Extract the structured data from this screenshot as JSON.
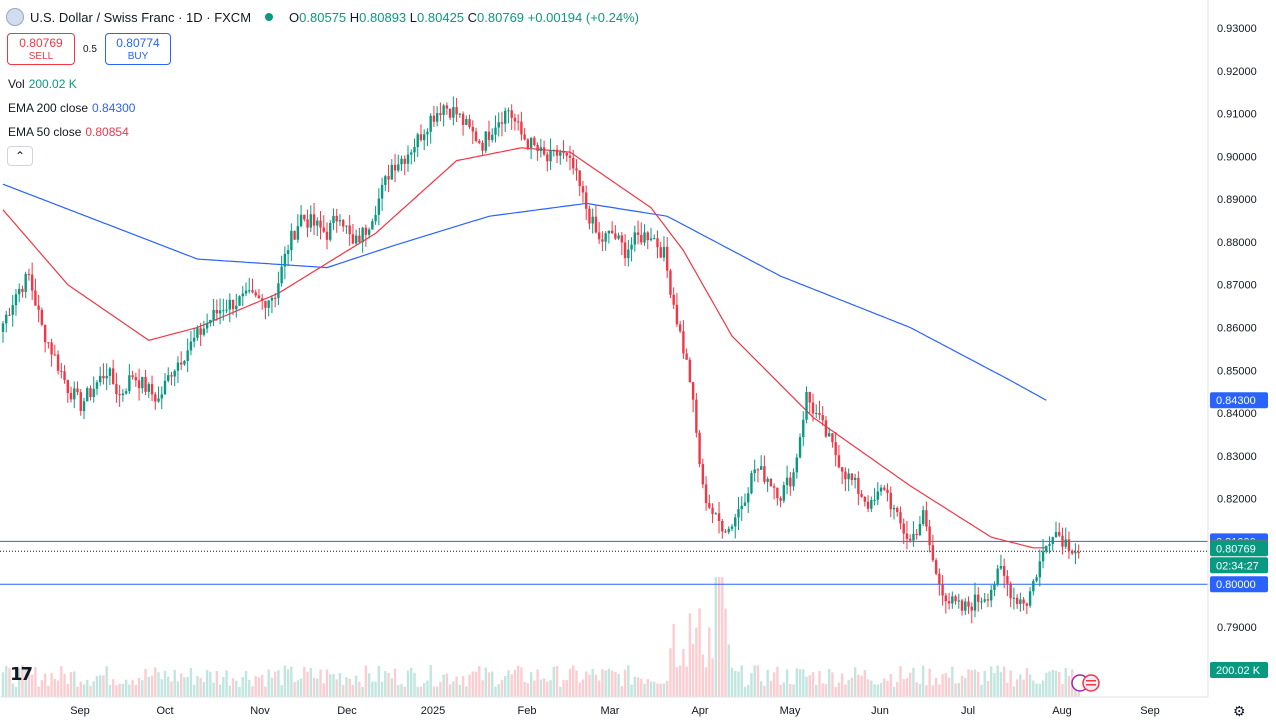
{
  "header": {
    "symbol_title": "U.S. Dollar / Swiss Franc · 1D · FXCM",
    "open_label": "O",
    "open": "0.80575",
    "high_label": "H",
    "high": "0.80893",
    "low_label": "L",
    "low": "0.80425",
    "close_label": "C",
    "close": "0.80769",
    "change": "+0.00194 (+0.24%)"
  },
  "trade": {
    "sell_price": "0.80769",
    "sell_label": "SELL",
    "spread": "0.5",
    "buy_price": "0.80774",
    "buy_label": "BUY"
  },
  "indicators": {
    "vol_label": "Vol",
    "vol_value": "200.02 K",
    "ema200_label": "EMA 200 close",
    "ema200_value": "0.84300",
    "ema50_label": "EMA 50 close",
    "ema50_value": "0.80854"
  },
  "price_scale": {
    "ticks": [
      "0.93000",
      "0.92000",
      "0.91000",
      "0.90000",
      "0.89000",
      "0.88000",
      "0.87000",
      "0.86000",
      "0.85000",
      "0.84000",
      "0.83000",
      "0.82000",
      "0.81000",
      "0.80000",
      "0.79000"
    ],
    "labels": [
      {
        "text": "0.84300",
        "color": "#2962ff"
      },
      {
        "text": "0.81000",
        "color": "#2962ff"
      },
      {
        "text": "0.80854",
        "color": "#f23645"
      },
      {
        "text": "0.80769",
        "color": "#089981"
      },
      {
        "text": "02:34:27",
        "color": "#089981"
      },
      {
        "text": "0.80000",
        "color": "#2962ff"
      },
      {
        "text": "200.02 K",
        "color": "#089981"
      }
    ]
  },
  "time_axis": [
    "Sep",
    "Oct",
    "Nov",
    "Dec",
    "2025",
    "Feb",
    "Mar",
    "Apr",
    "May",
    "Jun",
    "Jul",
    "Aug",
    "Sep"
  ],
  "icons": {
    "logo": "tradingview-logo-icon",
    "settings": "gear-icon",
    "collapse": "chevron-up-icon"
  },
  "colors": {
    "up": "#089981",
    "down": "#f23645",
    "ema200": "#2962ff",
    "ema50": "#f23645",
    "hline": "#2962ff"
  },
  "chart_data": {
    "type": "candlestick",
    "title": "U.S. Dollar / Swiss Franc · 1D · FXCM",
    "ylim": [
      0.785,
      0.935
    ],
    "horizontal_lines": [
      0.81,
      0.8
    ],
    "last_price": 0.80769,
    "ema200_last": 0.843,
    "ema50_last": 0.80854,
    "x_categories": [
      "Sep",
      "Oct",
      "Nov",
      "Dec",
      "2025",
      "Feb",
      "Mar",
      "Apr",
      "May",
      "Jun",
      "Jul",
      "Aug",
      "Sep"
    ],
    "price_path_keypoints": [
      [
        0,
        0.861
      ],
      [
        4,
        0.868
      ],
      [
        8,
        0.872
      ],
      [
        12,
        0.86
      ],
      [
        16,
        0.853
      ],
      [
        20,
        0.846
      ],
      [
        24,
        0.842
      ],
      [
        28,
        0.846
      ],
      [
        32,
        0.85
      ],
      [
        36,
        0.844
      ],
      [
        40,
        0.849
      ],
      [
        44,
        0.846
      ],
      [
        48,
        0.843
      ],
      [
        52,
        0.85
      ],
      [
        56,
        0.854
      ],
      [
        60,
        0.858
      ],
      [
        64,
        0.862
      ],
      [
        68,
        0.865
      ],
      [
        72,
        0.866
      ],
      [
        76,
        0.867
      ],
      [
        80,
        0.866
      ],
      [
        84,
        0.868
      ],
      [
        88,
        0.879
      ],
      [
        92,
        0.886
      ],
      [
        96,
        0.884
      ],
      [
        100,
        0.882
      ],
      [
        104,
        0.887
      ],
      [
        108,
        0.879
      ],
      [
        112,
        0.883
      ],
      [
        116,
        0.89
      ],
      [
        120,
        0.898
      ],
      [
        124,
        0.9
      ],
      [
        128,
        0.904
      ],
      [
        132,
        0.909
      ],
      [
        136,
        0.912
      ],
      [
        140,
        0.91
      ],
      [
        144,
        0.906
      ],
      [
        148,
        0.903
      ],
      [
        152,
        0.908
      ],
      [
        156,
        0.911
      ],
      [
        160,
        0.905
      ],
      [
        164,
        0.902
      ],
      [
        168,
        0.899
      ],
      [
        172,
        0.901
      ],
      [
        176,
        0.897
      ],
      [
        180,
        0.888
      ],
      [
        184,
        0.88
      ],
      [
        188,
        0.882
      ],
      [
        192,
        0.878
      ],
      [
        196,
        0.881
      ],
      [
        200,
        0.882
      ],
      [
        204,
        0.877
      ],
      [
        208,
        0.862
      ],
      [
        212,
        0.848
      ],
      [
        216,
        0.822
      ],
      [
        220,
        0.815
      ],
      [
        224,
        0.813
      ],
      [
        228,
        0.819
      ],
      [
        232,
        0.827
      ],
      [
        236,
        0.825
      ],
      [
        240,
        0.821
      ],
      [
        244,
        0.826
      ],
      [
        248,
        0.844
      ],
      [
        252,
        0.838
      ],
      [
        256,
        0.832
      ],
      [
        260,
        0.826
      ],
      [
        264,
        0.822
      ],
      [
        268,
        0.818
      ],
      [
        272,
        0.823
      ],
      [
        276,
        0.815
      ],
      [
        280,
        0.81
      ],
      [
        284,
        0.816
      ],
      [
        288,
        0.802
      ],
      [
        292,
        0.796
      ],
      [
        296,
        0.794
      ],
      [
        300,
        0.796
      ],
      [
        304,
        0.798
      ],
      [
        308,
        0.803
      ],
      [
        312,
        0.797
      ],
      [
        316,
        0.796
      ],
      [
        320,
        0.805
      ],
      [
        324,
        0.813
      ],
      [
        328,
        0.81
      ],
      [
        332,
        0.8077
      ]
    ],
    "ema200_keypoints": [
      [
        0,
        0.8935
      ],
      [
        60,
        0.876
      ],
      [
        100,
        0.874
      ],
      [
        120,
        0.879
      ],
      [
        150,
        0.886
      ],
      [
        180,
        0.889
      ],
      [
        205,
        0.886
      ],
      [
        240,
        0.872
      ],
      [
        280,
        0.86
      ],
      [
        310,
        0.848
      ],
      [
        322,
        0.843
      ]
    ],
    "ema50_keypoints": [
      [
        0,
        0.8875
      ],
      [
        20,
        0.87
      ],
      [
        45,
        0.857
      ],
      [
        60,
        0.86
      ],
      [
        85,
        0.868
      ],
      [
        115,
        0.882
      ],
      [
        140,
        0.899
      ],
      [
        160,
        0.902
      ],
      [
        175,
        0.901
      ],
      [
        200,
        0.888
      ],
      [
        210,
        0.878
      ],
      [
        225,
        0.858
      ],
      [
        250,
        0.839
      ],
      [
        280,
        0.823
      ],
      [
        305,
        0.811
      ],
      [
        318,
        0.8085
      ],
      [
        322,
        0.8085
      ]
    ]
  }
}
